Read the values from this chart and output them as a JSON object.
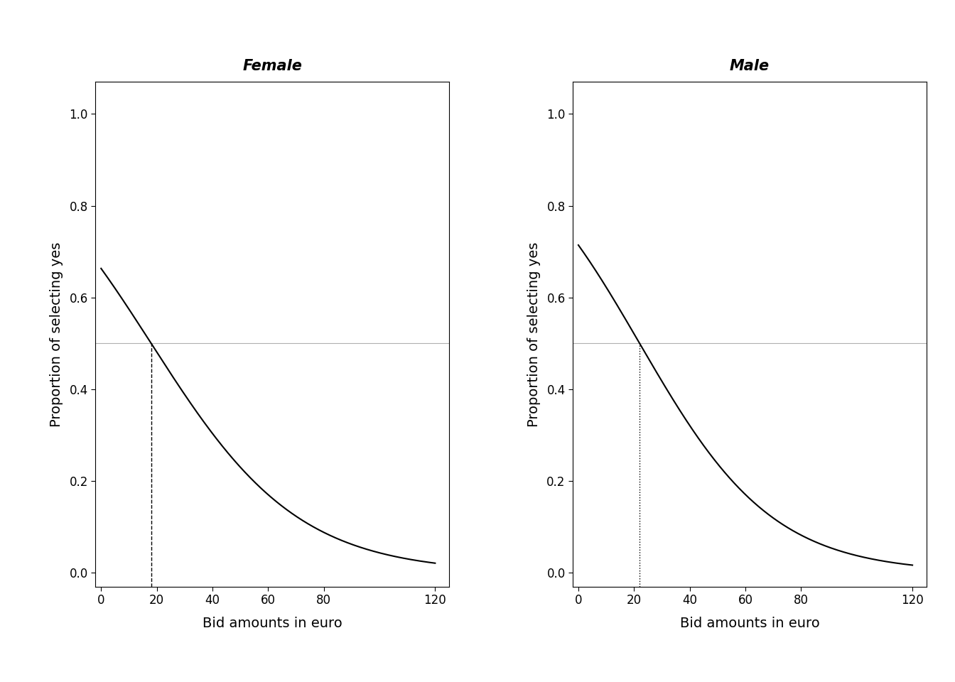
{
  "panels": [
    {
      "title": "Female",
      "wtp": 18,
      "intercept": 0.678,
      "slope": -0.0377,
      "vline_style": "dashed"
    },
    {
      "title": "Male",
      "wtp": 22,
      "intercept": 0.916,
      "slope": -0.04164,
      "vline_style": "dotted"
    }
  ],
  "xlabel": "Bid amounts in euro",
  "ylabel": "Proportion of selecting yes",
  "xlim": [
    -2,
    125
  ],
  "ylim": [
    -0.03,
    1.07
  ],
  "yticks": [
    0.0,
    0.2,
    0.4,
    0.6,
    0.8,
    1.0
  ],
  "xticks": [
    0,
    20,
    40,
    60,
    80,
    120
  ],
  "hline_y": 0.5,
  "hline_color": "#b0b0b0",
  "curve_color": "#000000",
  "vline_color": "#000000",
  "background_color": "#ffffff",
  "title_fontsize": 15,
  "label_fontsize": 14,
  "tick_fontsize": 12,
  "figure_width": 13.44,
  "figure_height": 9.6
}
